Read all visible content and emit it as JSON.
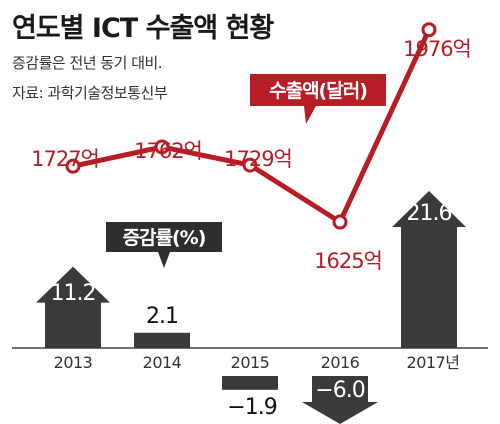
{
  "title": "연도별 ICT 수출액 현황",
  "subtitle": "증감률은 전년 동기 대비.",
  "source": "자료: 과학기술정보통신부",
  "colors": {
    "export_line": "#b81c24",
    "growth_bar": "#3a3a3a",
    "legend_box": "#2e2e2e",
    "axis": "#444444"
  },
  "chart_data": {
    "type": "line+bar",
    "categories": [
      "2013",
      "2014",
      "2015",
      "2016",
      "2017년"
    ],
    "series": [
      {
        "name": "수출액(달러)",
        "type": "line",
        "values": [
          1727,
          1762,
          1729,
          1625,
          1976
        ],
        "labels": [
          "1727억",
          "1762억",
          "1729억",
          "1625억",
          "1976억"
        ]
      },
      {
        "name": "증감률(%)",
        "type": "bar",
        "values": [
          11.2,
          2.1,
          -1.9,
          -6.0,
          21.6
        ],
        "labels": [
          "11.2",
          "2.1",
          "−1.9",
          "−6.0",
          "21.6"
        ]
      }
    ],
    "legend": [
      "수출액(달러)",
      "증감률(%)"
    ]
  }
}
